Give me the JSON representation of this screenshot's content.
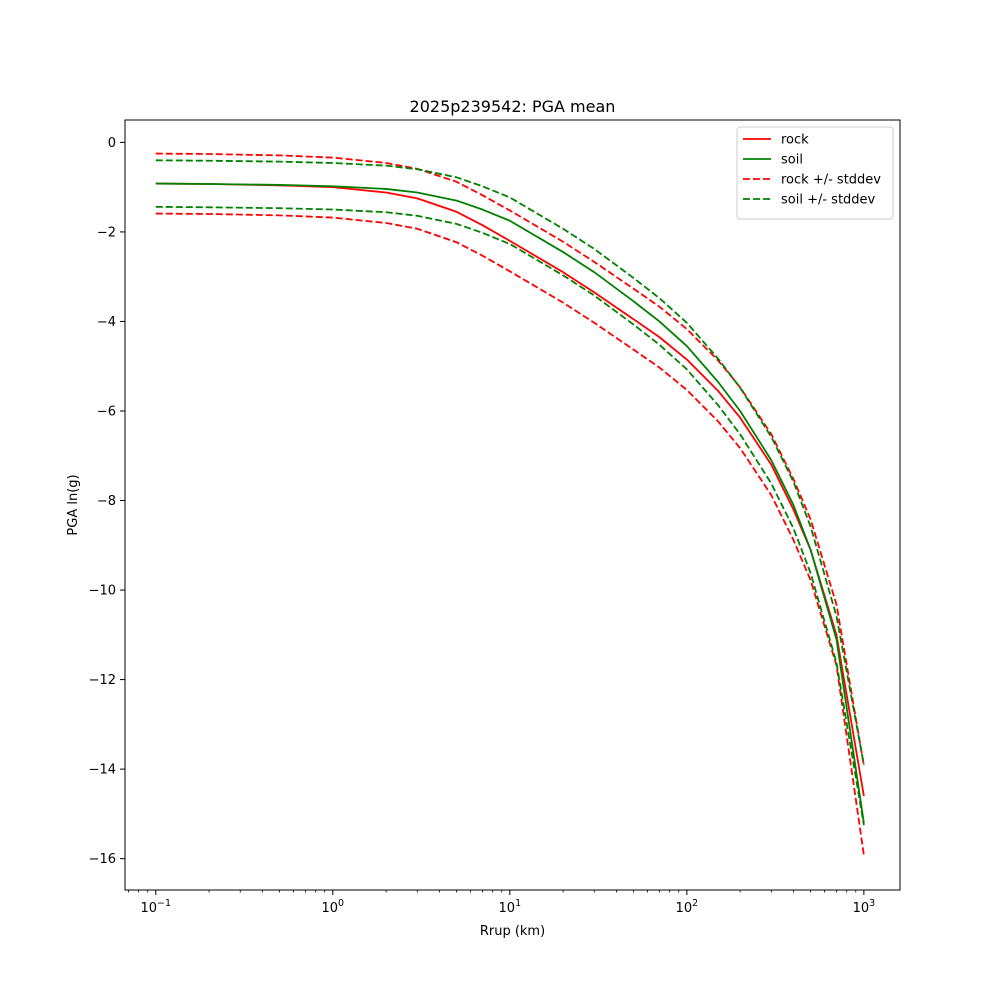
{
  "chart_data": {
    "type": "line",
    "title": "2025p239542: PGA mean",
    "xlabel": "Rrup (km)",
    "ylabel": "PGA ln(g)",
    "xscale": "log",
    "xlim": [
      0.067,
      1600
    ],
    "ylim": [
      -16.7,
      0.5
    ],
    "x_ticks": [
      {
        "value": 0.1,
        "base": "10",
        "exp": "−1"
      },
      {
        "value": 1,
        "base": "10",
        "exp": "0"
      },
      {
        "value": 10,
        "base": "10",
        "exp": "1"
      },
      {
        "value": 100,
        "base": "10",
        "exp": "2"
      },
      {
        "value": 1000,
        "base": "10",
        "exp": "3"
      }
    ],
    "y_ticks": [
      {
        "value": 0,
        "label": "0"
      },
      {
        "value": -2,
        "label": "−2"
      },
      {
        "value": -4,
        "label": "−4"
      },
      {
        "value": -6,
        "label": "−6"
      },
      {
        "value": -8,
        "label": "−8"
      },
      {
        "value": -10,
        "label": "−10"
      },
      {
        "value": -12,
        "label": "−12"
      },
      {
        "value": -14,
        "label": "−14"
      },
      {
        "value": -16,
        "label": "−16"
      }
    ],
    "grid": false,
    "legend_position": "top-right",
    "x": [
      0.1,
      0.2,
      0.5,
      1,
      2,
      3,
      5,
      7,
      10,
      20,
      30,
      50,
      70,
      100,
      150,
      200,
      300,
      400,
      500,
      700,
      1000
    ],
    "series": [
      {
        "name": "rock",
        "color": "#ff0000",
        "dash": false,
        "show_in_legend": true,
        "values": [
          -0.92,
          -0.93,
          -0.96,
          -1.0,
          -1.12,
          -1.25,
          -1.55,
          -1.85,
          -2.2,
          -2.9,
          -3.35,
          -3.95,
          -4.35,
          -4.85,
          -5.55,
          -6.15,
          -7.2,
          -8.2,
          -9.1,
          -11.0,
          -14.6
        ]
      },
      {
        "name": "soil",
        "color": "#008000",
        "dash": false,
        "show_in_legend": true,
        "values": [
          -0.92,
          -0.93,
          -0.95,
          -0.98,
          -1.04,
          -1.12,
          -1.3,
          -1.5,
          -1.75,
          -2.45,
          -2.9,
          -3.55,
          -4.0,
          -4.55,
          -5.35,
          -6.0,
          -7.1,
          -8.1,
          -9.1,
          -11.1,
          -15.2
        ]
      },
      {
        "name": "rock +/- stddev",
        "color": "#ff0000",
        "dash": true,
        "show_in_legend": true,
        "values": [
          -0.25,
          -0.26,
          -0.29,
          -0.34,
          -0.46,
          -0.59,
          -0.88,
          -1.18,
          -1.52,
          -2.22,
          -2.67,
          -3.27,
          -3.67,
          -4.17,
          -4.87,
          -5.47,
          -6.52,
          -7.52,
          -8.42,
          -10.32,
          -13.92
        ]
      },
      {
        "name": "rock +/- stddev",
        "color": "#ff0000",
        "dash": true,
        "show_in_legend": false,
        "values": [
          -1.59,
          -1.6,
          -1.63,
          -1.68,
          -1.8,
          -1.93,
          -2.23,
          -2.53,
          -2.88,
          -3.58,
          -4.03,
          -4.63,
          -5.03,
          -5.53,
          -6.23,
          -6.83,
          -7.88,
          -8.88,
          -9.78,
          -11.68,
          -15.92
        ]
      },
      {
        "name": "soil +/- stddev",
        "color": "#008000",
        "dash": true,
        "show_in_legend": true,
        "values": [
          -0.4,
          -0.41,
          -0.43,
          -0.46,
          -0.52,
          -0.6,
          -0.78,
          -0.98,
          -1.23,
          -1.93,
          -2.38,
          -3.03,
          -3.48,
          -4.03,
          -4.83,
          -5.48,
          -6.58,
          -7.58,
          -8.58,
          -10.58,
          -13.9
        ]
      },
      {
        "name": "soil +/- stddev",
        "color": "#008000",
        "dash": true,
        "show_in_legend": false,
        "values": [
          -1.44,
          -1.45,
          -1.47,
          -1.5,
          -1.56,
          -1.64,
          -1.82,
          -2.02,
          -2.27,
          -2.97,
          -3.42,
          -4.07,
          -4.52,
          -5.07,
          -5.87,
          -6.52,
          -7.62,
          -8.62,
          -9.62,
          -11.62,
          -15.25
        ]
      }
    ]
  }
}
